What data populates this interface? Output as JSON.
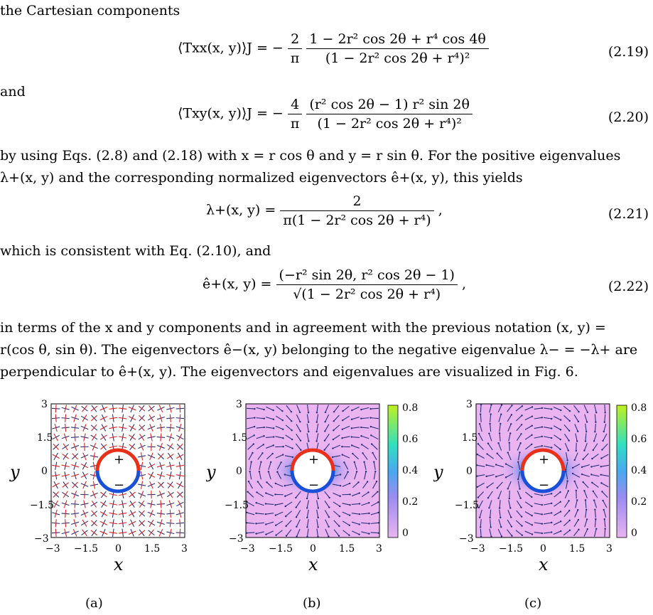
{
  "text": {
    "p1": "the Cartesian components",
    "and": "and",
    "p2a": "by using Eqs. (2.8) and (2.18) with x = r cos θ and y = r sin θ. For the positive eigenvalues",
    "p2b": "λ+(x, y) and the corresponding normalized eigenvectors ê+(x, y), this yields",
    "p3": "which is consistent with Eq. (2.10), and",
    "p4a": "in terms of the x and y components and in agreement with the previous notation (x, y) =",
    "p4b": "r(cos θ, sin θ). The eigenvectors ê−(x, y) belonging to the negative eigenvalue λ− = −λ+ are",
    "p4c": "perpendicular to ê+(x, y). The eigenvectors and eigenvalues are visualized in Fig. 6."
  },
  "equations": {
    "eq219": {
      "lhs": "⟨Txx(x, y)⟩J = −",
      "coef_num": "2",
      "coef_den": "π",
      "num": "1 − 2r² cos 2θ + r⁴ cos 4θ",
      "den": "(1 − 2r² cos 2θ + r⁴)²",
      "number": "(2.19)"
    },
    "eq220": {
      "lhs": "⟨Txy(x, y)⟩J = −",
      "coef_num": "4",
      "coef_den": "π",
      "num": "(r² cos 2θ − 1) r² sin 2θ",
      "den": "(1 − 2r² cos 2θ + r⁴)²",
      "number": "(2.20)"
    },
    "eq221": {
      "lhs": "λ+(x, y) =",
      "num": "2",
      "den": "π(1 − 2r² cos 2θ + r⁴)",
      "tail": ",",
      "number": "(2.21)"
    },
    "eq222": {
      "lhs": "ê+(x, y) =",
      "num": "(−r² sin 2θ, r² cos 2θ − 1)",
      "den": "√(1 − 2r² cos 2θ + r⁴)",
      "tail": ",",
      "number": "(2.22)"
    }
  },
  "figures": [
    {
      "caption": "(a)",
      "xlabel": "x",
      "ylabel": "y",
      "ticks": [
        "−3",
        "−1.5",
        "0",
        "1.5",
        "3"
      ],
      "plus": "+",
      "minus": "−"
    },
    {
      "caption": "(b)",
      "xlabel": "x",
      "ylabel": "y",
      "ticks": [
        "−3",
        "−1.5",
        "0",
        "1.5",
        "3"
      ],
      "plus": "+",
      "minus": "−",
      "colorbar": [
        "0",
        "0.2",
        "0.4",
        "0.6",
        "0.8"
      ]
    },
    {
      "caption": "(c)",
      "xlabel": "x",
      "ylabel": "y",
      "ticks": [
        "−3",
        "−1.5",
        "0",
        "1.5",
        "3"
      ],
      "plus": "+",
      "minus": "−",
      "colorbar": [
        "0",
        "0.2",
        "0.4",
        "0.6",
        "0.8"
      ]
    }
  ],
  "colors": {
    "plus_arc": "#e8301a",
    "minus_arc": "#1a4fd8",
    "field_bg": "#e9b4f0",
    "arrow": "#2b2f7a",
    "tick_red": "#e02020"
  }
}
